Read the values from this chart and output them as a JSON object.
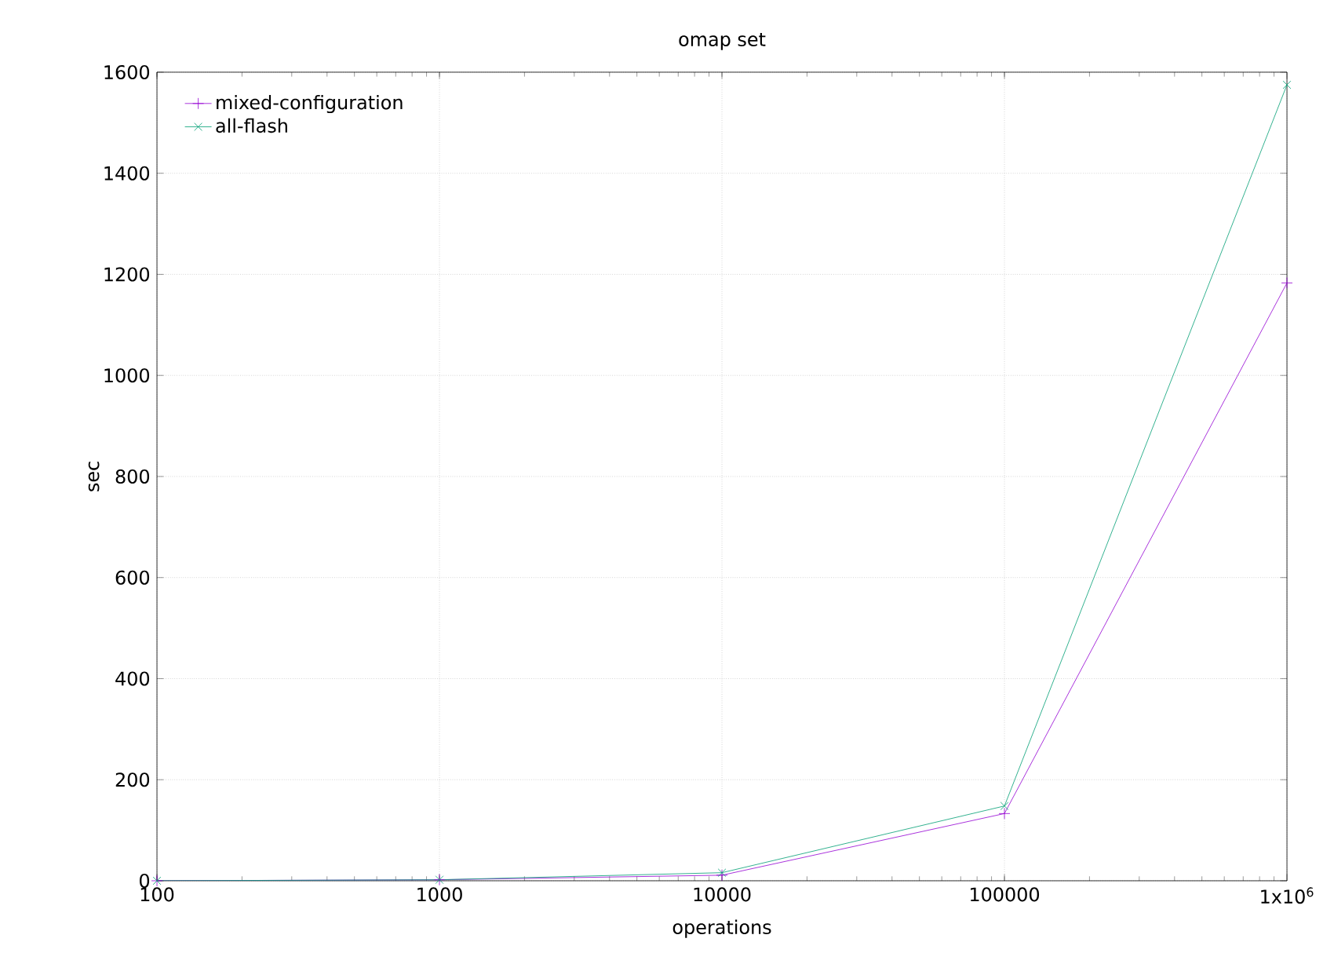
{
  "chart_data": {
    "type": "line",
    "title": "omap set",
    "xlabel": "operations",
    "ylabel": "sec",
    "x": [
      100,
      1000,
      10000,
      100000,
      1000000
    ],
    "series": [
      {
        "name": "mixed-configuration",
        "color": "#9400d3",
        "marker": "cross",
        "values": [
          0,
          2,
          11,
          133,
          1183
        ]
      },
      {
        "name": "all-flash",
        "color": "#009e73",
        "marker": "x",
        "values": [
          0,
          2,
          16,
          148,
          1575
        ]
      }
    ],
    "log": "x",
    "xlim": [
      100,
      1000000
    ],
    "ylim": [
      0,
      1600
    ],
    "xticks": [
      100,
      1000,
      10000,
      100000,
      {
        "value": 1000000,
        "label": "1x10$^{6}$"
      }
    ],
    "yticks": [
      0,
      200,
      400,
      600,
      800,
      1000,
      1200,
      1400,
      1600
    ],
    "grid": true,
    "legend": "top left",
    "line_style": "solid"
  }
}
